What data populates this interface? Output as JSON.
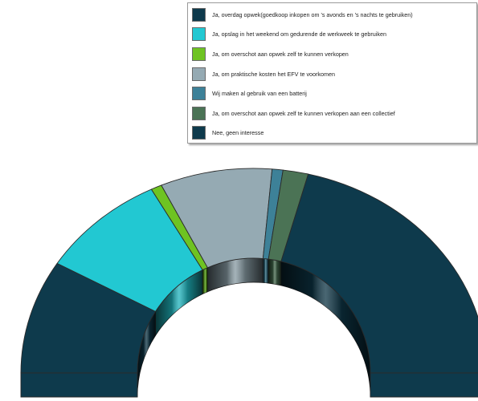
{
  "chart_data": {
    "type": "pie",
    "subtype": "donut-3d-half",
    "legend_position": "top-right",
    "series": [
      {
        "name": "Ja, overdag opwek(goedkoop inkopen om 's avonds en 's nachts te gebruiken)",
        "value": 18.0,
        "color": "#0e3a4c"
      },
      {
        "name": "Ja, opslag in het weekend om gedurende de werkweek te gebruiken",
        "value": 17.5,
        "color": "#22c8d2"
      },
      {
        "name": "Ja, om overschot aan opwek zelf te kunnen verkopen",
        "value": 1.5,
        "color": "#6ec322"
      },
      {
        "name": "Ja, om praktische kosten het EFV te voorkomen",
        "value": 15.5,
        "color": "#95aab3"
      },
      {
        "name": "Wij maken al gebruik van een batterij",
        "value": 1.5,
        "color": "#3d8198"
      },
      {
        "name": "Ja, om overschot aan opwek zelf te kunnen verkopen aan een collectief",
        "value": 3.5,
        "color": "#4b7355"
      },
      {
        "name": "Nee, geen interesse",
        "value": 42.5,
        "color": "#0e3a4c"
      }
    ]
  }
}
